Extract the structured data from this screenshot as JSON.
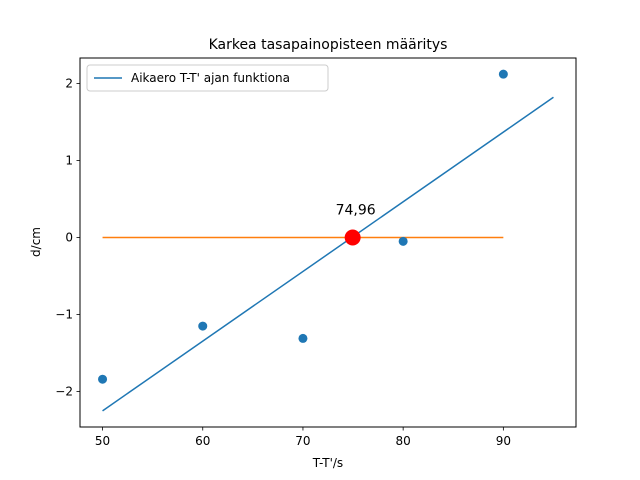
{
  "chart_data": {
    "type": "scatter",
    "title": "Karkea tasapainopisteen määritys",
    "xlabel": "T-T'/s",
    "ylabel": "d/cm",
    "xlim": [
      47.75,
      97.25
    ],
    "ylim": [
      -2.46,
      2.33
    ],
    "xticks": [
      50,
      60,
      70,
      80,
      90
    ],
    "yticks": [
      -2,
      -1,
      0,
      1,
      2
    ],
    "xtick_labels": [
      "50",
      "60",
      "70",
      "80",
      "90"
    ],
    "ytick_labels": [
      "−2",
      "−1",
      "0",
      "1",
      "2"
    ],
    "grid": false,
    "legend_position": "top-left",
    "points": {
      "color": "#1f77b4",
      "x": [
        50,
        60,
        70,
        80,
        90
      ],
      "y": [
        -1.84,
        -1.15,
        -1.31,
        -0.05,
        2.12
      ]
    },
    "series": [
      {
        "name": "Aikaero T-T' ajan funktiona",
        "type": "line",
        "color": "#1f77b4",
        "x": [
          50,
          95
        ],
        "y": [
          -2.25,
          1.82
        ]
      },
      {
        "type": "line",
        "color": "#ff7f0e",
        "x": [
          50,
          90
        ],
        "y": [
          0,
          0
        ]
      }
    ],
    "intersection": {
      "x": 74.96,
      "y": 0,
      "color": "#ff0000",
      "label": "74,96"
    }
  }
}
